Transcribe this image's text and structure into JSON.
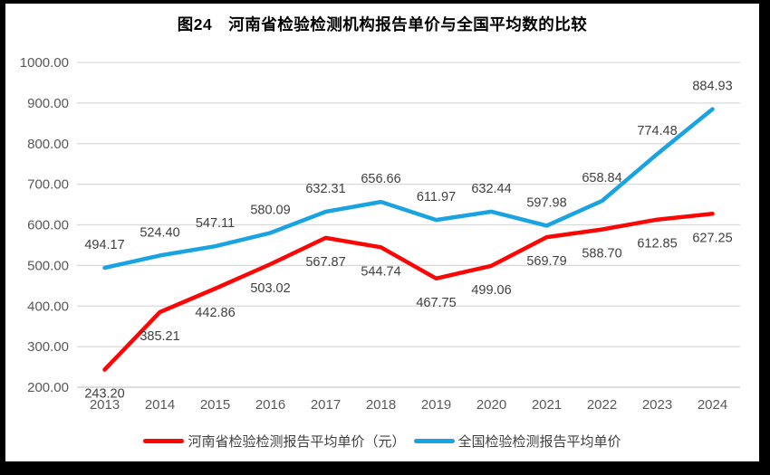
{
  "chart_data": {
    "type": "line",
    "title": "图24　河南省检验检测机构报告单价与全国平均数的比较",
    "categories": [
      "2013",
      "2014",
      "2015",
      "2016",
      "2017",
      "2018",
      "2019",
      "2020",
      "2021",
      "2022",
      "2023",
      "2024"
    ],
    "series": [
      {
        "name": "河南省检验检测报告平均单价（元）",
        "color": "#fb0505",
        "label_position": "below",
        "values": [
          243.2,
          385.21,
          442.86,
          503.02,
          567.87,
          544.74,
          467.75,
          499.06,
          569.79,
          588.7,
          612.85,
          627.25
        ]
      },
      {
        "name": "全国检验检测报告平均单价",
        "color": "#1aa3e1",
        "label_position": "above",
        "values": [
          494.17,
          524.4,
          547.11,
          580.09,
          632.31,
          656.66,
          611.97,
          632.44,
          597.98,
          658.84,
          774.48,
          884.93
        ]
      }
    ],
    "xlabel": "",
    "ylabel": "",
    "ylim": [
      200,
      1000
    ],
    "ytick_step": 100,
    "ytick_labels": [
      "200.00",
      "300.00",
      "400.00",
      "500.00",
      "600.00",
      "700.00",
      "800.00",
      "900.00",
      "1000.00"
    ],
    "value_label_decimals": 2,
    "grid": true,
    "legend_position": "bottom",
    "colors": {
      "gridline": "#d9d9d9",
      "axis_line": "#c9c9c9",
      "axis_label": "#595959",
      "data_label": "#404040",
      "title": "#000000",
      "frame": "#000000"
    }
  }
}
